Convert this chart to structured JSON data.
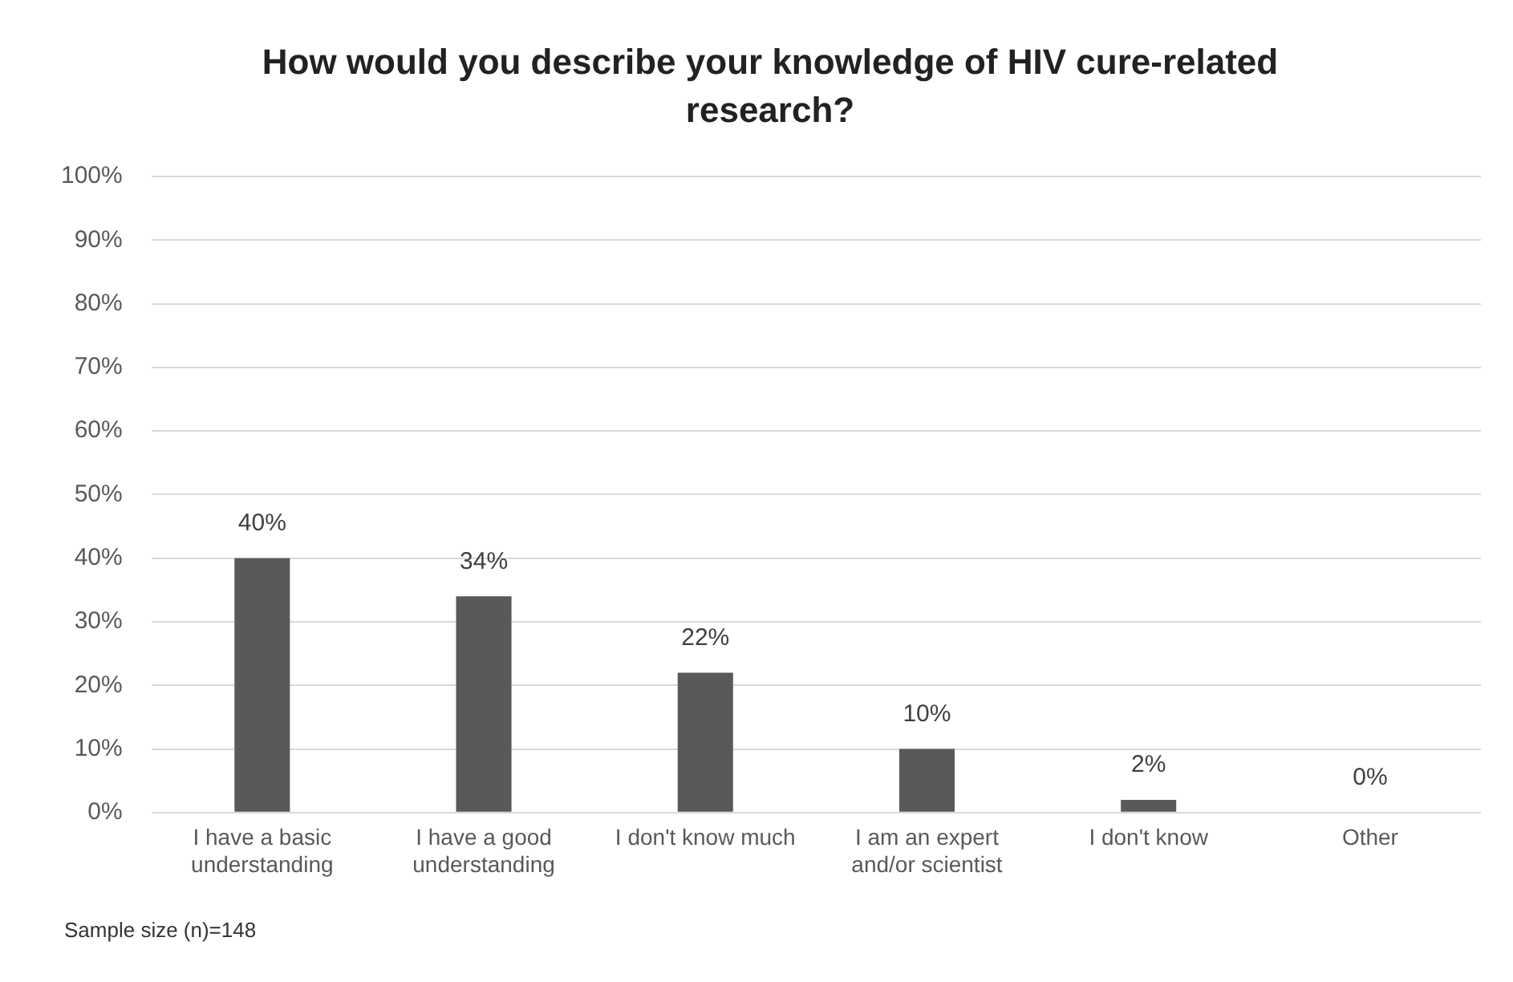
{
  "chart_data": {
    "type": "bar",
    "title": "How would you describe your knowledge of HIV cure-related research?",
    "categories": [
      "I have a basic understanding",
      "I have a good understanding",
      "I don't know much",
      "I am an expert and/or scientist",
      "I don't know",
      "Other"
    ],
    "values": [
      40,
      34,
      22,
      10,
      2,
      0
    ],
    "value_labels": [
      "40%",
      "34%",
      "22%",
      "10%",
      "2%",
      "0%"
    ],
    "color": "#595959",
    "ylim": [
      0,
      100
    ],
    "yticks": [
      {
        "value": 0,
        "label": "0%"
      },
      {
        "value": 10,
        "label": "10%"
      },
      {
        "value": 20,
        "label": "20%"
      },
      {
        "value": 30,
        "label": "30%"
      },
      {
        "value": 40,
        "label": "40%"
      },
      {
        "value": 50,
        "label": "50%"
      },
      {
        "value": 60,
        "label": "60%"
      },
      {
        "value": 70,
        "label": "70%"
      },
      {
        "value": 80,
        "label": "80%"
      },
      {
        "value": 90,
        "label": "90%"
      },
      {
        "value": 100,
        "label": "100%"
      }
    ],
    "grid": "y",
    "annotations": [
      "Sample size (n)=148"
    ]
  }
}
